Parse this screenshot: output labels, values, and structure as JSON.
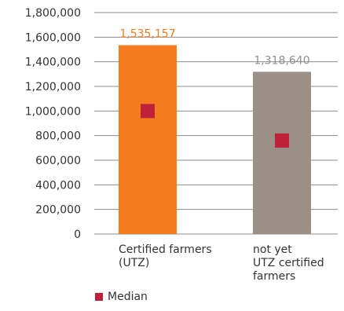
{
  "chart_data": {
    "type": "bar",
    "categories": [
      [
        "Certified farmers",
        "(UTZ)"
      ],
      [
        "not yet",
        "UTZ certified",
        "farmers"
      ]
    ],
    "values": [
      1535157,
      1318640
    ],
    "value_labels": [
      "1,535,157",
      "1,318,640"
    ],
    "median": [
      1000000,
      760000
    ],
    "bar_colors": [
      "#f47b20",
      "#9b8f86"
    ],
    "value_label_colors": [
      "#f47b20",
      "#8e8e8e"
    ],
    "median_color": "#c0213a",
    "ylim": [
      0,
      1800000
    ],
    "yticks": [
      0,
      200000,
      400000,
      600000,
      800000,
      1000000,
      1200000,
      1400000,
      1600000,
      1800000
    ],
    "ytick_labels": [
      "0",
      "200,000",
      "400,000",
      "600,000",
      "800,000",
      "1,000,000",
      "1,200,000",
      "1,400,000",
      "1,600,000",
      "1,800,000"
    ],
    "grid": true,
    "legend": [
      {
        "name": "Median",
        "color": "#c0213a"
      }
    ],
    "legend_position": "bottom-left"
  }
}
